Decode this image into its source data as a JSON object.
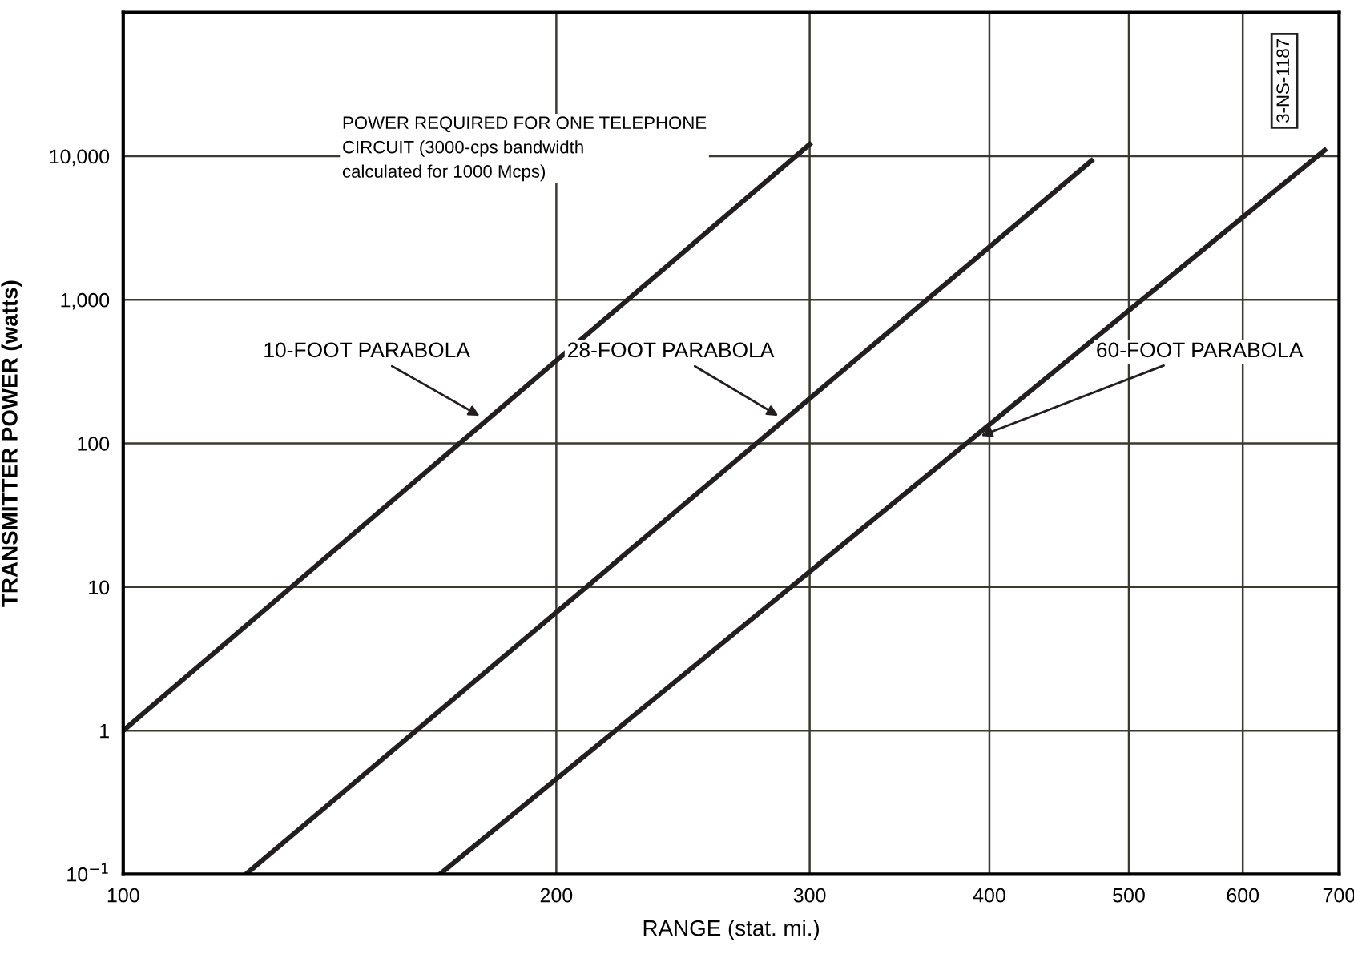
{
  "chart_data": {
    "type": "line",
    "xlabel": "RANGE (stat. mi.)",
    "ylabel": "TRANSMITTER POWER (watts)",
    "series": [
      {
        "color": "#231f20",
        "x": [
          100,
          300
        ],
        "values": [
          1,
          12100
        ]
      },
      {
        "color": "#231f20",
        "x": [
          121.7,
          471
        ],
        "values": [
          0.1,
          9300
        ]
      },
      {
        "color": "#231f20",
        "x": [
          166,
          684
        ],
        "values": [
          0.1,
          11000
        ]
      }
    ],
    "log": "xy",
    "xlim": [
      100,
      700
    ],
    "xticks": [
      100,
      200,
      300,
      400,
      500,
      600,
      700
    ],
    "ylim": [
      0.1,
      100000
    ],
    "yticks": [
      {
        "value": 0.1,
        "label": "10$^{−1}$"
      },
      1,
      10,
      100,
      {
        "value": 1000,
        "label": "1,000"
      },
      {
        "value": 10000,
        "label": "10,000"
      }
    ],
    "grid": true,
    "legend": false,
    "marker": "none",
    "line_style": "solid",
    "annotations": [
      "POWER REQUIRED FOR ONE TELEPHONE\nCIRCUIT (3000-cps bandwidth\ncalculated for 1000 Mcps)",
      {
        "text": "10-FOOT PARABOLA",
        "x": 178,
        "y": 150
      },
      {
        "text": "28-FOOT PARABOLA",
        "x": 287,
        "y": 150
      },
      {
        "text": "60-FOOT PARABOLA",
        "x": 392,
        "y": 110
      },
      "3-NS-1187"
    ]
  }
}
